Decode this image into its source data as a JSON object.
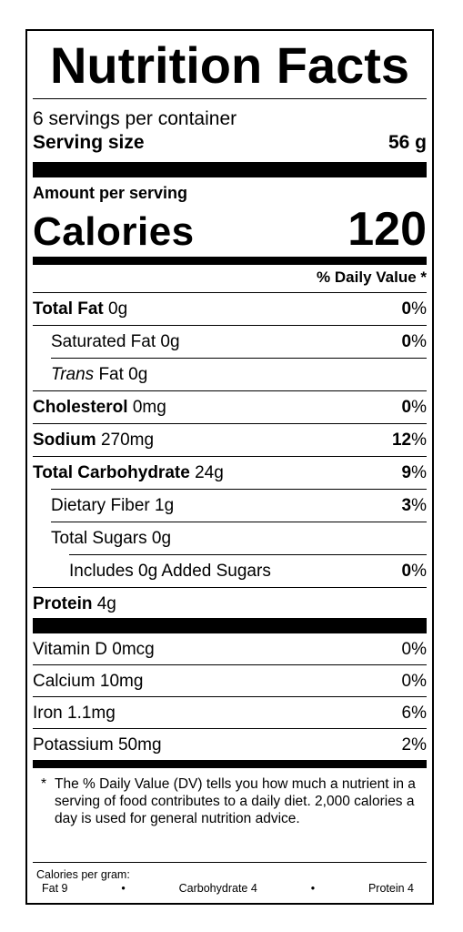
{
  "title": "Nutrition Facts",
  "servings_per_container": "6 servings per container",
  "serving_size": {
    "label": "Serving size",
    "value": "56 g"
  },
  "amount_per_serving": "Amount per serving",
  "calories": {
    "label": "Calories",
    "value": "120"
  },
  "dv_header": "% Daily Value *",
  "nutrients": {
    "total_fat": {
      "name": "Total Fat",
      "amount": "0g",
      "dv": "0",
      "pct": "%"
    },
    "saturated_fat": {
      "name": "Saturated Fat 0g",
      "dv": "0",
      "pct": "%"
    },
    "trans_fat": {
      "italic": "Trans",
      "rest": "Fat 0g"
    },
    "cholesterol": {
      "name": "Cholesterol",
      "amount": "0mg",
      "dv": "0",
      "pct": "%"
    },
    "sodium": {
      "name": "Sodium",
      "amount": "270mg",
      "dv": "12",
      "pct": "%"
    },
    "total_carb": {
      "name": "Total Carbohydrate",
      "amount": "24g",
      "dv": "9",
      "pct": "%"
    },
    "dietary_fiber": {
      "name": "Dietary Fiber 1g",
      "dv": "3",
      "pct": "%"
    },
    "total_sugars": {
      "name": "Total Sugars 0g"
    },
    "added_sugars": {
      "name": "Includes 0g Added Sugars",
      "dv": "0",
      "pct": "%"
    },
    "protein": {
      "name": "Protein",
      "amount": "4g"
    }
  },
  "vitamins": [
    {
      "name": "Vitamin D 0mcg",
      "dv": "0%"
    },
    {
      "name": "Calcium 10mg",
      "dv": "0%"
    },
    {
      "name": "Iron 1.1mg",
      "dv": "6%"
    },
    {
      "name": "Potassium 50mg",
      "dv": "2%"
    }
  ],
  "footnote": {
    "star": "*",
    "text": "The % Daily Value (DV) tells you how much a nutrient in a serving of food contributes to a daily diet. 2,000 calories a day is used for general nutrition advice."
  },
  "calories_per_gram": {
    "title": "Calories per gram:",
    "fat": "Fat 9",
    "bullet": "•",
    "carbohydrate": "Carbohydrate 4",
    "protein": "Protein 4"
  }
}
